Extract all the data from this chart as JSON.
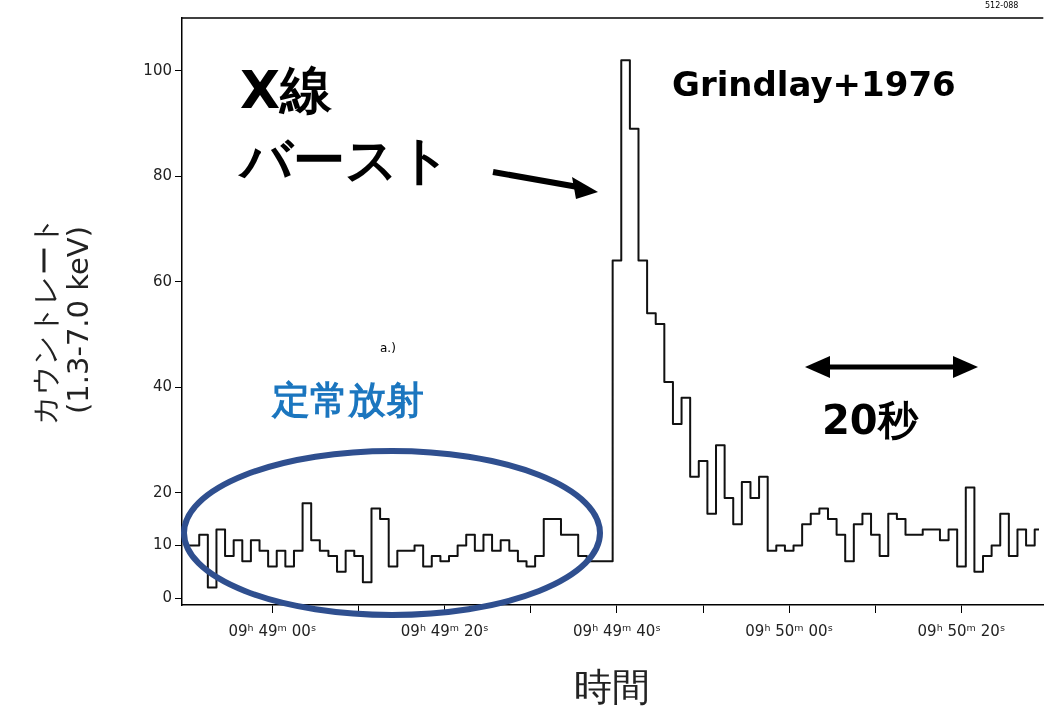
{
  "chart_data": {
    "type": "step",
    "xlabel": "時間",
    "ylabel": "カウントレート\n(1.3-7.0 keV)",
    "color": "#111111",
    "categories": [
      null,
      null,
      null,
      null,
      null,
      null,
      null,
      null,
      null,
      null,
      "09ʰ 49ᵐ 00ˢ",
      null,
      null,
      null,
      null,
      null,
      null,
      null,
      null,
      null,
      null,
      null,
      null,
      null,
      null,
      null,
      null,
      null,
      null,
      null,
      "09ʰ 49ᵐ 20ˢ",
      null,
      null,
      null,
      null,
      null,
      null,
      null,
      null,
      null,
      null,
      null,
      null,
      null,
      null,
      null,
      null,
      null,
      null,
      null,
      "09ʰ 49ᵐ 40ˢ",
      null,
      null,
      null,
      null,
      null,
      null,
      null,
      null,
      null,
      null,
      null,
      null,
      null,
      null,
      null,
      null,
      null,
      null,
      null,
      "09ʰ 50ᵐ 00ˢ",
      null,
      null,
      null,
      null,
      null,
      null,
      null,
      null,
      null,
      null,
      null,
      null,
      null,
      null,
      null,
      null,
      null,
      null,
      null,
      "09ʰ 50ᵐ 20ˢ",
      null,
      null,
      null,
      null,
      null,
      null,
      null,
      null,
      null
    ],
    "values": [
      10,
      10,
      12,
      2,
      13,
      8,
      11,
      7,
      11,
      9,
      6,
      9,
      6,
      9,
      18,
      11,
      9,
      8,
      5,
      9,
      8,
      3,
      17,
      15,
      6,
      9,
      9,
      10,
      6,
      8,
      7,
      8,
      10,
      12,
      9,
      12,
      9,
      11,
      9,
      7,
      6,
      8,
      15,
      15,
      12,
      12,
      8,
      7,
      7,
      7,
      64,
      102,
      89,
      64,
      54,
      52,
      41,
      33,
      38,
      23,
      26,
      16,
      29,
      19,
      14,
      22,
      19,
      23,
      9,
      10,
      9,
      10,
      14,
      16,
      17,
      15,
      12,
      7,
      14,
      16,
      12,
      8,
      16,
      15,
      12,
      12,
      13,
      13,
      11,
      13,
      6,
      21,
      5,
      8,
      10,
      16,
      8,
      13,
      10,
      13
    ],
    "ylim": [
      -1.3,
      110
    ],
    "yticks": [
      0,
      10,
      20,
      40,
      60,
      80,
      100
    ],
    "annotations": [
      "X線",
      "バースト",
      "Grindlay+1976",
      "定常放射",
      "20秒",
      "a.)",
      "512-088"
    ]
  }
}
